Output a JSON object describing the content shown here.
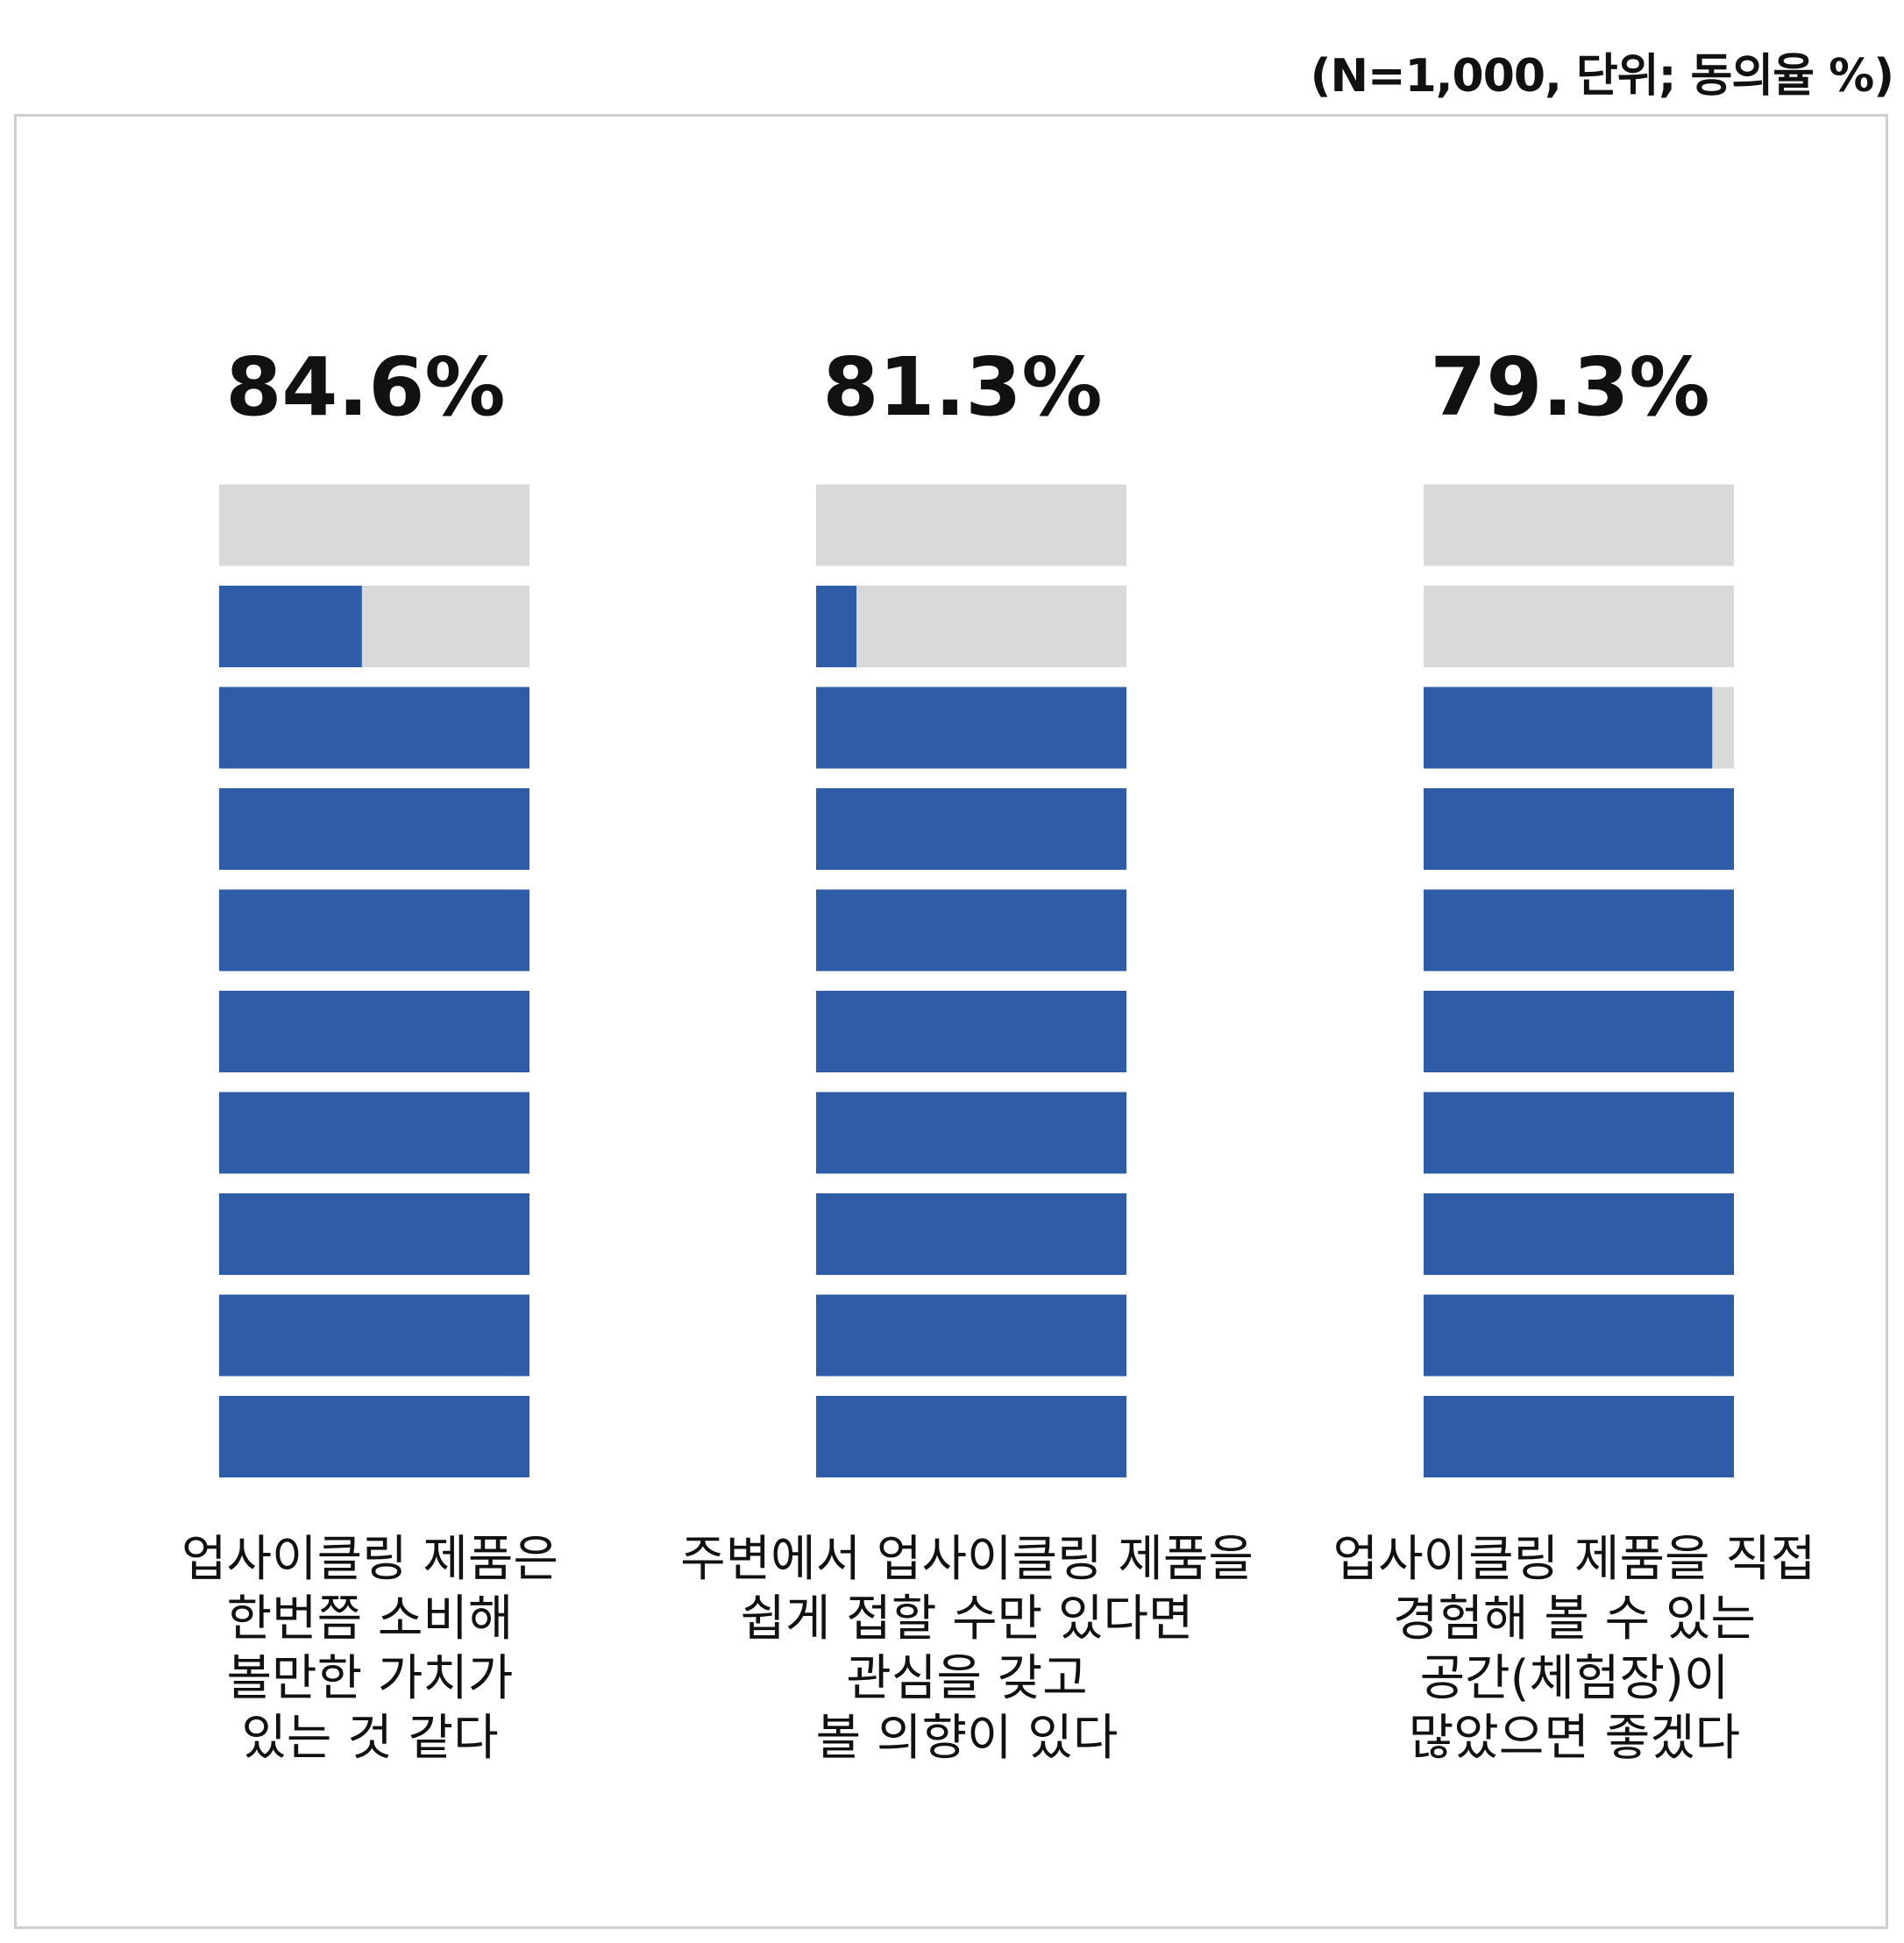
{
  "note": "(N=1,000, 단위; 동의율 %)",
  "colors": {
    "filled": "#2e5ca6",
    "empty": "#d9d9d9"
  },
  "chart_data": {
    "type": "bar",
    "subtype": "pictogram-stacked-segments",
    "unit": "%",
    "segments_per_bar": 10,
    "ylim": [
      0,
      100
    ],
    "grid": false,
    "legend": "none",
    "categories": [
      [
        "업사이클링 제품은",
        "한번쯤 소비해",
        "볼만한 가치가",
        "있는 것 같다"
      ],
      [
        "주변에서 업사이클링 제품을",
        "쉽게 접할 수만 있다면",
        "관심을 갖고",
        "볼 의향이 있다"
      ],
      [
        "업사이클링 제품을 직접",
        "경험해 볼 수 있는",
        "공간(체험장)이",
        "많았으면 좋겠다"
      ]
    ],
    "values": [
      84.6,
      81.3,
      79.3
    ],
    "value_labels": [
      "84.6%",
      "81.3%",
      "79.3%"
    ]
  }
}
